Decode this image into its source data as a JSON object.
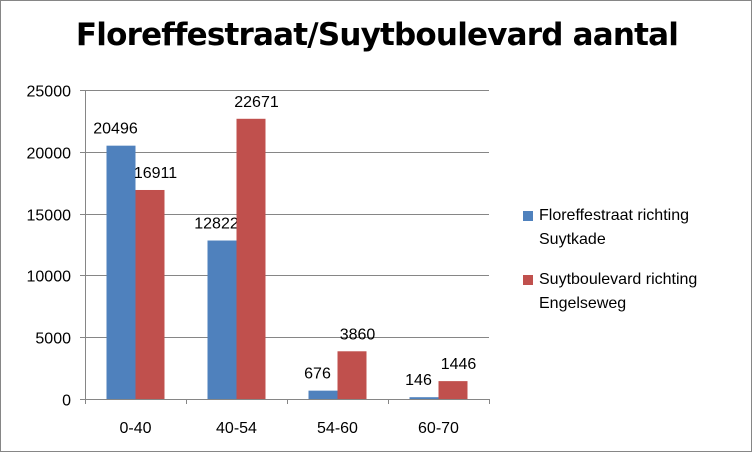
{
  "chart_data": {
    "type": "bar",
    "title": "Floreffestraat/Suytboulevard aantal",
    "categories": [
      "0-40",
      "40-54",
      "54-60",
      "60-70"
    ],
    "series": [
      {
        "name": "Floreffestraat richting Suytkade",
        "values": [
          20496,
          12822,
          676,
          146
        ],
        "color": "#4F81BD"
      },
      {
        "name": "Suytboulevard richting Engelseweg",
        "values": [
          16911,
          22671,
          3860,
          1446
        ],
        "color": "#C0504D"
      }
    ],
    "ylim": [
      0,
      25000
    ],
    "yticks": [
      0,
      5000,
      10000,
      15000,
      20000,
      25000
    ],
    "grid": true,
    "legend": "right"
  }
}
